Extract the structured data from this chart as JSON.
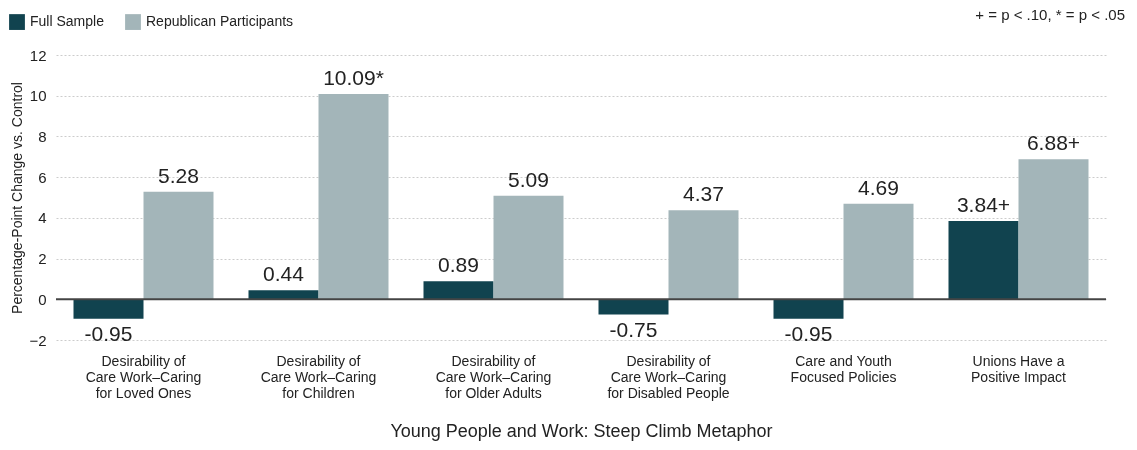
{
  "chart_data": {
    "type": "bar",
    "xlabel": "Young People and Work: Steep Climb Metaphor",
    "ylabel": "Percentage-Point Change vs. Control",
    "categories": [
      "Desirability of\nCare Work–Caring\nfor Loved Ones",
      "Desirability of\nCare Work–Caring\nfor Children",
      "Desirability of\nCare Work–Caring\nfor Older Adults",
      "Desirability of\nCare Work–Caring\nfor Disabled People",
      "Care and Youth\nFocused Policies",
      "Unions Have a\nPositive Impact"
    ],
    "series": [
      {
        "name": "Full Sample",
        "color": "#11434f",
        "values": [
          -0.95,
          0.44,
          0.89,
          -0.75,
          -0.95,
          3.84
        ],
        "value_labels": [
          "-0.95",
          "0.44",
          "0.89",
          "-0.75",
          "-0.95",
          "3.84+"
        ]
      },
      {
        "name": "Republican Participants",
        "color": "#a3b5b9",
        "values": [
          5.28,
          10.09,
          5.09,
          4.37,
          4.69,
          6.88
        ],
        "value_labels": [
          "5.28",
          "10.09*",
          "5.09",
          "4.37",
          "4.69",
          "6.88+"
        ]
      }
    ],
    "ref_lines": [
      {
        "axis": "y",
        "value": 0,
        "color": "#444444"
      }
    ],
    "ylim": [
      -2,
      12
    ],
    "yticks": [
      -2,
      0,
      2,
      4,
      6,
      8,
      10,
      12
    ],
    "grid": "y",
    "legend": "top left",
    "annotations": [
      "+ = p < .10, * = p < .05"
    ]
  }
}
